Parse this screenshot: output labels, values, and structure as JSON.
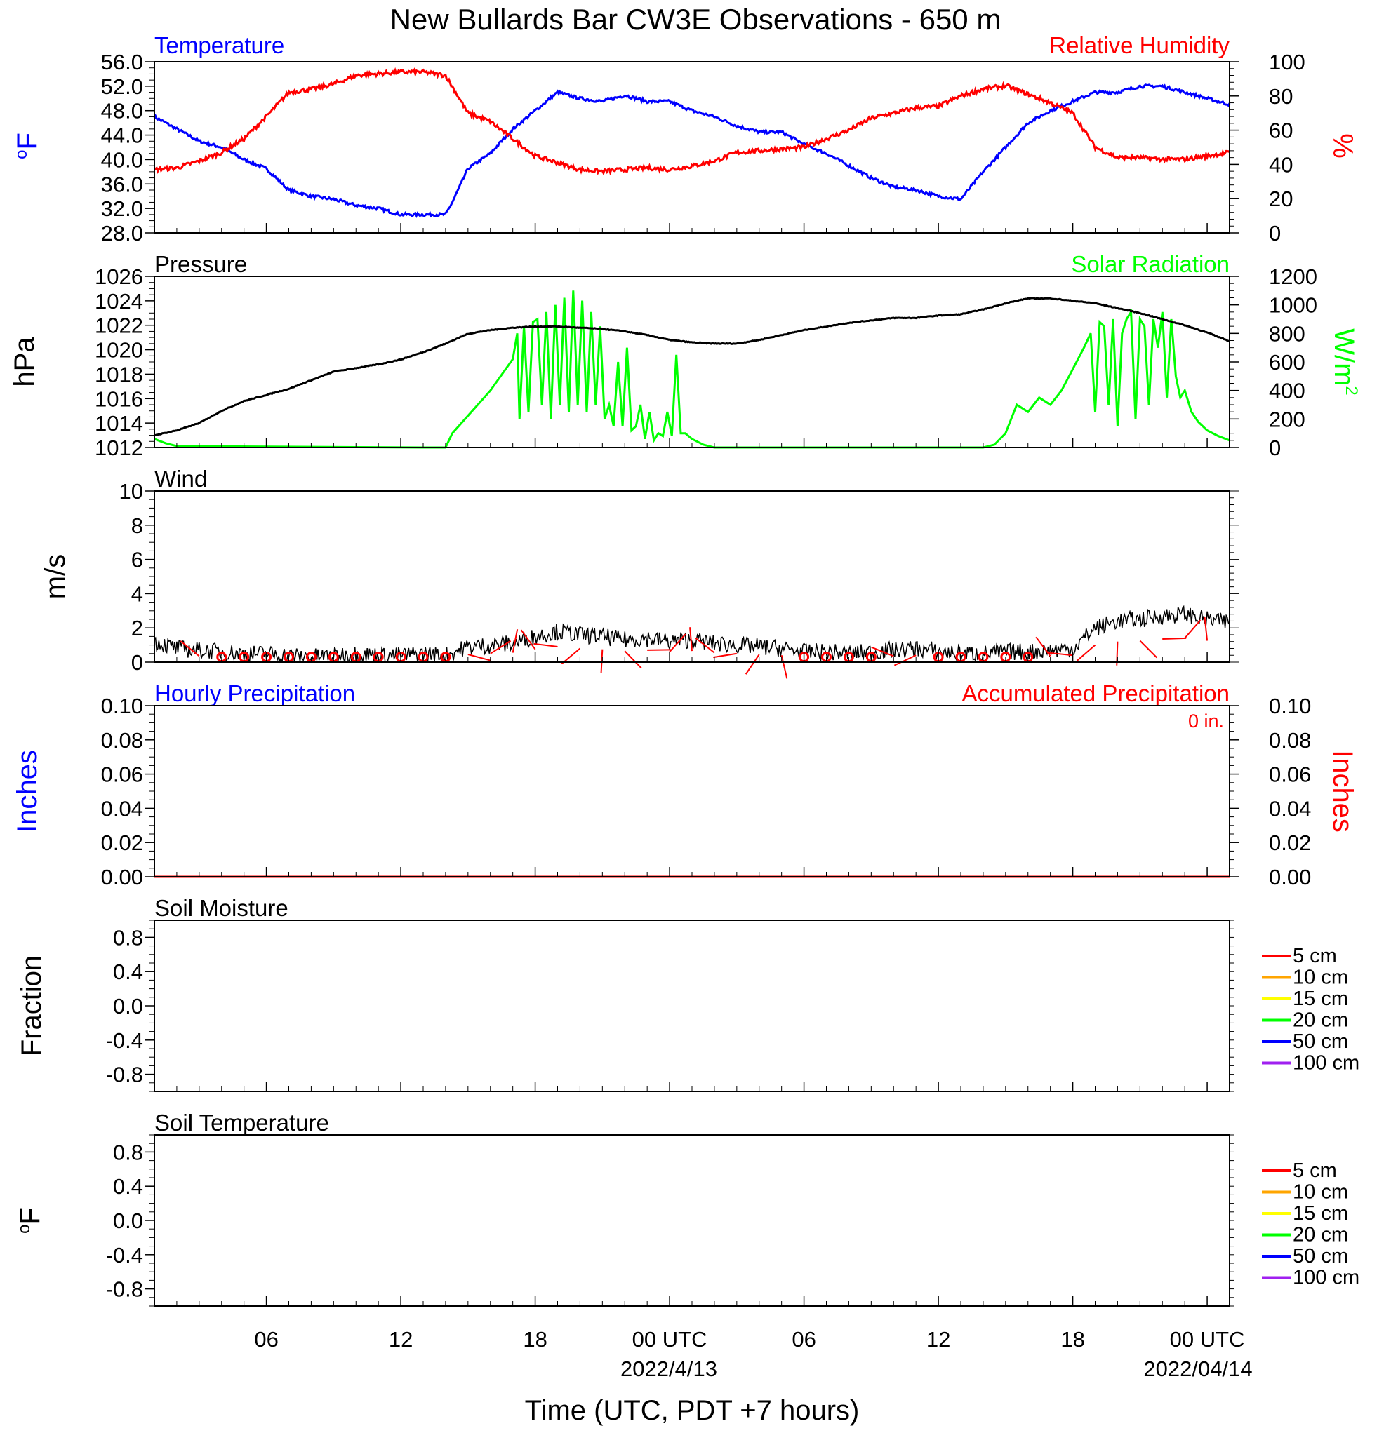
{
  "title": "New Bullards Bar CW3E Observations - 650 m",
  "x_axis": {
    "label": "Time (UTC, PDT +7 hours)",
    "ticks": [
      "06",
      "12",
      "18",
      "00 UTC",
      "06",
      "12",
      "18",
      "00 UTC"
    ],
    "dates": [
      "2022/4/13",
      "2022/04/14"
    ]
  },
  "colors": {
    "temperature": "#0000ff",
    "humidity": "#ff0000",
    "pressure": "#000000",
    "solar": "#00ff00",
    "wind": "#000000",
    "wind_barb": "#ff0000",
    "precip_hourly": "#0000ff",
    "precip_accum": "#ff0000",
    "depth_colors": [
      "#ff0000",
      "#ffa500",
      "#ffff00",
      "#00ff00",
      "#0000ff",
      "#a020f0"
    ]
  },
  "panels": {
    "temperature": {
      "left_title": "Temperature",
      "right_title": "Relative Humidity",
      "left_unit_base": "o",
      "left_unit": "F",
      "right_unit": "%",
      "left_ticks": [
        "56.0",
        "52.0",
        "48.0",
        "44.0",
        "40.0",
        "36.0",
        "32.0",
        "28.0"
      ],
      "right_ticks": [
        "100",
        "80",
        "60",
        "40",
        "20",
        "0"
      ]
    },
    "pressure": {
      "left_title": "Pressure",
      "right_title": "Solar Radiation",
      "left_unit": "hPa",
      "right_unit": "W/m",
      "right_unit_sup": "2",
      "left_ticks": [
        "1026",
        "1024",
        "1022",
        "1020",
        "1018",
        "1016",
        "1014",
        "1012"
      ],
      "right_ticks": [
        "1200",
        "1000",
        "800",
        "600",
        "400",
        "200",
        "0"
      ]
    },
    "wind": {
      "left_title": "Wind",
      "left_unit": "m/s",
      "left_ticks": [
        "10",
        "8",
        "6",
        "4",
        "2",
        "0"
      ]
    },
    "precip": {
      "left_title": "Hourly Precipitation",
      "right_title": "Accumulated Precipitation",
      "total": "0 in.",
      "left_unit": "Inches",
      "right_unit": "Inches",
      "left_ticks": [
        "0.10",
        "0.08",
        "0.06",
        "0.04",
        "0.02",
        "0.00"
      ],
      "right_ticks": [
        "0.10",
        "0.08",
        "0.06",
        "0.04",
        "0.02",
        "0.00"
      ]
    },
    "soil_moisture": {
      "left_title": "Soil Moisture",
      "left_unit": "Fraction",
      "left_ticks": [
        "0.8",
        "0.4",
        "0.0",
        "-0.4",
        "-0.8"
      ],
      "legend": [
        "5 cm",
        "10 cm",
        "15 cm",
        "20 cm",
        "50 cm",
        "100 cm"
      ]
    },
    "soil_temperature": {
      "left_title": "Soil Temperature",
      "left_unit_base": "o",
      "left_unit": "F",
      "left_ticks": [
        "0.8",
        "0.4",
        "0.0",
        "-0.4",
        "-0.8"
      ],
      "legend": [
        "5 cm",
        "10 cm",
        "15 cm",
        "20 cm",
        "50 cm",
        "100 cm"
      ]
    }
  },
  "chart_data": [
    {
      "type": "line",
      "panel": "temperature",
      "x_unit": "hours since 2022-04-12 00 UTC",
      "xlim": [
        1,
        49
      ],
      "ylim": [
        28,
        56
      ],
      "y2lim": [
        0,
        100
      ],
      "series": [
        {
          "name": "Temperature",
          "axis": "left",
          "x": [
            1,
            2,
            3,
            4,
            5,
            6,
            7,
            8,
            9,
            10,
            11,
            12,
            13,
            14,
            14.3,
            15,
            16,
            17,
            18,
            19,
            20,
            21,
            22,
            23,
            24,
            25,
            26,
            27,
            28,
            29,
            30,
            31,
            32,
            33,
            34,
            35,
            36,
            37,
            38,
            39,
            40,
            41,
            42,
            43,
            44,
            45,
            46,
            47,
            48,
            49
          ],
          "y": [
            47,
            45,
            43,
            42,
            40,
            38.5,
            35,
            34,
            33.5,
            32.5,
            32,
            31,
            31,
            31,
            33,
            38.5,
            41,
            45,
            48,
            51,
            50,
            49.5,
            50.5,
            49.5,
            49.5,
            48,
            47,
            45.5,
            44.5,
            44.5,
            42.5,
            41,
            39,
            37,
            35.5,
            35,
            34,
            33.5,
            38,
            42,
            46,
            48,
            49.5,
            51,
            51,
            52,
            52,
            51,
            50,
            49
          ]
        },
        {
          "name": "Relative Humidity",
          "axis": "right",
          "x": [
            1,
            2,
            3,
            4,
            5,
            6,
            7,
            8,
            9,
            10,
            11,
            12,
            13,
            14,
            15,
            16,
            17,
            18,
            19,
            20,
            21,
            22,
            23,
            24,
            25,
            26,
            27,
            28,
            29,
            30,
            31,
            32,
            33,
            34,
            35,
            36,
            37,
            38,
            39,
            40,
            41,
            42,
            43,
            44,
            45,
            46,
            47,
            48,
            49
          ],
          "y": [
            37,
            38,
            42,
            47,
            55,
            68,
            82,
            84,
            87,
            92,
            93,
            94,
            94,
            92,
            70,
            65,
            55,
            45,
            41,
            37,
            36,
            37,
            38,
            37,
            39,
            42,
            47,
            48,
            49,
            50,
            55,
            60,
            67,
            70,
            73,
            74,
            80,
            84,
            86,
            81,
            76,
            70,
            50,
            44,
            44,
            43,
            43,
            45,
            47
          ]
        }
      ]
    },
    {
      "type": "line",
      "panel": "pressure",
      "x_unit": "hours since 2022-04-12 00 UTC",
      "xlim": [
        1,
        49
      ],
      "ylim": [
        1012,
        1026
      ],
      "y2lim": [
        0,
        1200
      ],
      "series": [
        {
          "name": "Pressure",
          "axis": "left",
          "x": [
            1,
            2,
            3,
            4,
            5,
            6,
            7,
            8,
            9,
            10,
            11,
            12,
            13,
            14,
            15,
            16,
            17,
            18,
            19,
            20,
            21,
            22,
            23,
            24,
            25,
            26,
            27,
            28,
            29,
            30,
            31,
            32,
            33,
            34,
            35,
            36,
            37,
            38,
            39,
            40,
            41,
            42,
            43,
            44,
            45,
            46,
            47,
            48,
            49
          ],
          "y": [
            1013,
            1013.4,
            1014,
            1015,
            1015.8,
            1016.3,
            1016.8,
            1017.5,
            1018.2,
            1018.5,
            1018.8,
            1019.2,
            1019.8,
            1020.5,
            1021.3,
            1021.6,
            1021.8,
            1021.9,
            1021.9,
            1021.8,
            1021.7,
            1021.5,
            1021.2,
            1020.8,
            1020.6,
            1020.5,
            1020.5,
            1020.8,
            1021.2,
            1021.6,
            1021.9,
            1022.2,
            1022.4,
            1022.6,
            1022.6,
            1022.8,
            1022.9,
            1023.3,
            1023.8,
            1024.2,
            1024.2,
            1024.0,
            1023.8,
            1023.4,
            1023.0,
            1022.5,
            1022.0,
            1021.4,
            1020.7
          ]
        },
        {
          "name": "Solar Radiation",
          "axis": "right",
          "x": [
            1,
            1.5,
            2,
            13,
            14,
            14.3,
            16,
            17,
            17.2,
            17.3,
            17.5,
            17.7,
            17.9,
            18.1,
            18.3,
            18.5,
            18.7,
            18.9,
            19.1,
            19.3,
            19.5,
            19.7,
            19.9,
            20.1,
            20.3,
            20.5,
            20.7,
            20.9,
            21.1,
            21.3,
            21.5,
            21.7,
            21.9,
            22.1,
            22.3,
            22.5,
            22.7,
            22.9,
            23.1,
            23.3,
            23.5,
            23.7,
            23.9,
            24.1,
            24.3,
            24.5,
            24.7,
            25,
            25.5,
            26,
            26.5,
            38,
            38.5,
            39,
            39.5,
            40,
            40.5,
            41,
            41.5,
            42,
            42.5,
            42.8,
            43,
            43.2,
            43.4,
            43.6,
            43.8,
            44,
            44.2,
            44.4,
            44.6,
            44.8,
            45,
            45.2,
            45.4,
            45.6,
            45.8,
            46,
            46.2,
            46.4,
            46.6,
            46.8,
            47,
            47.3,
            47.6,
            48,
            48.5,
            49
          ],
          "y": [
            60,
            30,
            10,
            0,
            0,
            100,
            400,
            620,
            800,
            200,
            850,
            250,
            880,
            900,
            300,
            950,
            200,
            1000,
            300,
            1050,
            250,
            1100,
            300,
            1030,
            250,
            950,
            300,
            850,
            200,
            300,
            150,
            600,
            150,
            700,
            120,
            150,
            300,
            60,
            250,
            50,
            100,
            80,
            250,
            80,
            650,
            100,
            100,
            60,
            20,
            0,
            0,
            0,
            20,
            100,
            300,
            250,
            350,
            300,
            400,
            550,
            700,
            800,
            250,
            880,
            850,
            300,
            900,
            150,
            800,
            900,
            950,
            200,
            900,
            850,
            300,
            900,
            700,
            950,
            350,
            900,
            500,
            350,
            400,
            250,
            180,
            120,
            80,
            50
          ]
        }
      ]
    },
    {
      "type": "line",
      "panel": "wind",
      "x_unit": "hours since 2022-04-12 00 UTC",
      "xlim": [
        1,
        49
      ],
      "ylim": [
        0,
        10
      ],
      "series": [
        {
          "name": "Wind",
          "x": [
            1,
            2,
            3,
            4,
            5,
            6,
            7,
            8,
            9,
            10,
            11,
            12,
            13,
            14,
            15,
            16,
            17,
            18,
            19,
            20,
            21,
            22,
            23,
            24,
            25,
            26,
            27,
            28,
            29,
            30,
            31,
            32,
            33,
            34,
            35,
            36,
            37,
            38,
            39,
            40,
            41,
            42,
            43,
            44,
            45,
            46,
            47,
            48,
            49
          ],
          "y": [
            1.2,
            0.8,
            0.7,
            0.6,
            0.5,
            0.5,
            0.4,
            0.3,
            0.4,
            0.5,
            0.4,
            0.4,
            0.5,
            0.4,
            0.9,
            1.0,
            1.1,
            1.5,
            1.8,
            1.6,
            1.5,
            1.3,
            1.4,
            1.2,
            1.3,
            1.1,
            1.0,
            0.9,
            0.8,
            0.6,
            0.6,
            0.5,
            0.6,
            0.7,
            0.8,
            0.6,
            0.5,
            0.5,
            0.6,
            0.6,
            0.7,
            0.8,
            2.0,
            2.4,
            2.5,
            2.7,
            2.8,
            2.5,
            2.3
          ]
        }
      ]
    },
    {
      "type": "line",
      "panel": "precip",
      "x_unit": "hours since 2022-04-12 00 UTC",
      "xlim": [
        1,
        49
      ],
      "ylim": [
        0,
        0.1
      ],
      "series": [
        {
          "name": "Accumulated Precipitation",
          "x": [
            1,
            49
          ],
          "y": [
            0,
            0
          ]
        }
      ]
    }
  ]
}
